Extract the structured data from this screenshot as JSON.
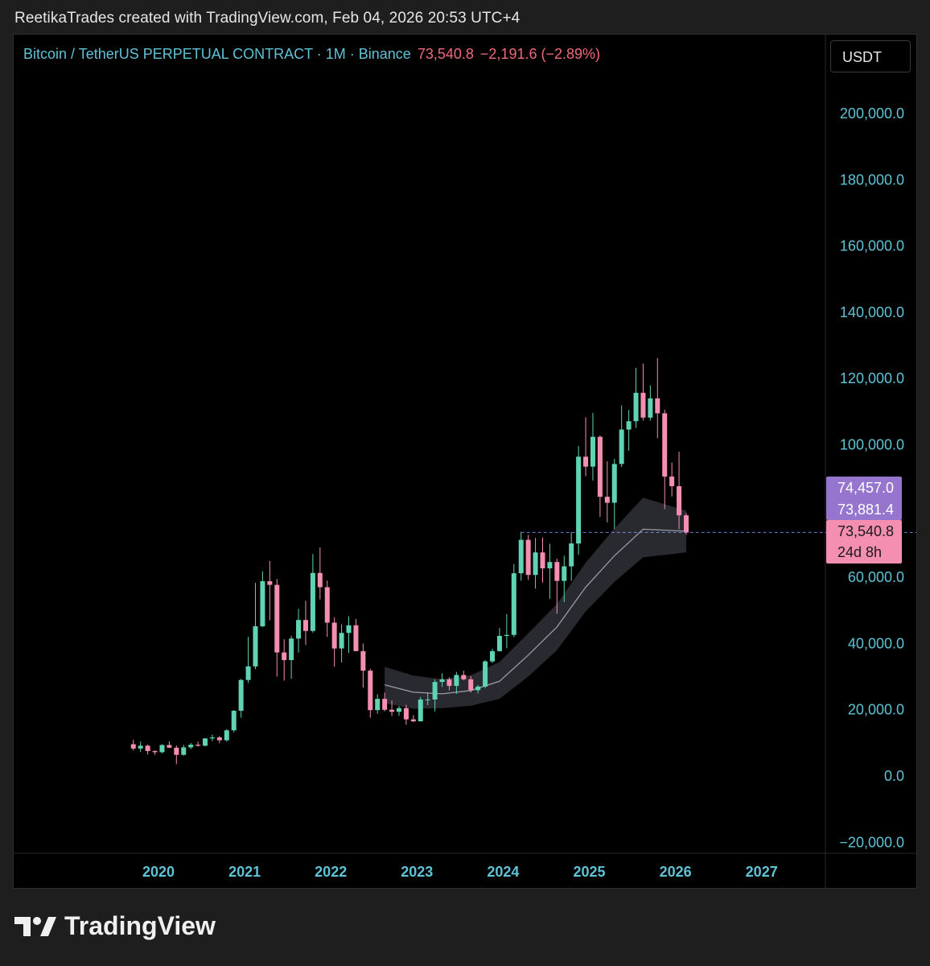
{
  "caption": "ReetikaTrades created with TradingView.com, Feb 04, 2026 20:53 UTC+4",
  "header": {
    "symbol": "Bitcoin / TetherUS PERPETUAL CONTRACT · 1M · Binance",
    "price": "73,540.8",
    "change": "−2,191.6 (−2.89%)"
  },
  "currency_button": "USDT",
  "logo_text": "TradingView",
  "colors": {
    "up": "#5fd3b3",
    "down": "#f48fb1",
    "axis_text": "#5fc3d6",
    "band": "#2a2c33",
    "ma_line": "#9a9ca3",
    "label_purple": "#9575cd",
    "label_pink": "#f48fb1"
  },
  "chart_data": {
    "type": "candlestick",
    "interval": "1M",
    "ylim": [
      -25000,
      225000
    ],
    "y_ticks": [
      {
        "value": 200000,
        "label": "200,000.0"
      },
      {
        "value": 180000,
        "label": "180,000.0"
      },
      {
        "value": 160000,
        "label": "160,000.0"
      },
      {
        "value": 140000,
        "label": "140,000.0"
      },
      {
        "value": 120000,
        "label": "120,000.0"
      },
      {
        "value": 100000,
        "label": "100,000.0"
      },
      {
        "value": 60000,
        "label": "60,000.0"
      },
      {
        "value": 40000,
        "label": "40,000.0"
      },
      {
        "value": 20000,
        "label": "20,000.0"
      },
      {
        "value": 0,
        "label": "0.0"
      },
      {
        "value": -20000,
        "label": "−20,000.0"
      }
    ],
    "x_ticks": [
      {
        "value": 2020,
        "label": "2020"
      },
      {
        "value": 2021,
        "label": "2021"
      },
      {
        "value": 2022,
        "label": "2022"
      },
      {
        "value": 2023,
        "label": "2023"
      },
      {
        "value": 2024,
        "label": "2024"
      },
      {
        "value": 2025,
        "label": "2025"
      },
      {
        "value": 2026,
        "label": "2026"
      },
      {
        "value": 2027,
        "label": "2027"
      }
    ],
    "price_labels": [
      {
        "value": 74457.0,
        "text": "74,457.0",
        "style": "purple"
      },
      {
        "value": 73881.4,
        "text": "73,881.4",
        "style": "purple"
      },
      {
        "value": 73540.8,
        "text": "73,540.8",
        "sub": "24d 8h",
        "style": "pink"
      }
    ],
    "last_price": 73540.8,
    "candles": [
      {
        "t": "2019-09",
        "o": 9600,
        "h": 10900,
        "l": 7700,
        "c": 8300
      },
      {
        "t": "2019-10",
        "o": 8300,
        "h": 10400,
        "l": 7300,
        "c": 9150
      },
      {
        "t": "2019-11",
        "o": 9150,
        "h": 9500,
        "l": 6500,
        "c": 7550
      },
      {
        "t": "2019-12",
        "o": 7550,
        "h": 7750,
        "l": 6400,
        "c": 7200
      },
      {
        "t": "2020-01",
        "o": 7200,
        "h": 9600,
        "l": 6850,
        "c": 9350
      },
      {
        "t": "2020-02",
        "o": 9350,
        "h": 10500,
        "l": 8450,
        "c": 8550
      },
      {
        "t": "2020-03",
        "o": 8550,
        "h": 9200,
        "l": 3600,
        "c": 6400
      },
      {
        "t": "2020-04",
        "o": 6400,
        "h": 9450,
        "l": 6150,
        "c": 8650
      },
      {
        "t": "2020-05",
        "o": 8650,
        "h": 10000,
        "l": 8100,
        "c": 9450
      },
      {
        "t": "2020-06",
        "o": 9450,
        "h": 10400,
        "l": 8850,
        "c": 9150
      },
      {
        "t": "2020-07",
        "o": 9150,
        "h": 11450,
        "l": 8950,
        "c": 11350
      },
      {
        "t": "2020-08",
        "o": 11350,
        "h": 12500,
        "l": 10550,
        "c": 11650
      },
      {
        "t": "2020-09",
        "o": 11650,
        "h": 12100,
        "l": 9900,
        "c": 10800
      },
      {
        "t": "2020-10",
        "o": 10800,
        "h": 14100,
        "l": 10400,
        "c": 13800
      },
      {
        "t": "2020-11",
        "o": 13800,
        "h": 19900,
        "l": 13200,
        "c": 19700
      },
      {
        "t": "2020-12",
        "o": 19700,
        "h": 29300,
        "l": 17600,
        "c": 29000
      },
      {
        "t": "2021-01",
        "o": 29000,
        "h": 42000,
        "l": 28100,
        "c": 33100
      },
      {
        "t": "2021-02",
        "o": 33100,
        "h": 58300,
        "l": 32300,
        "c": 45200
      },
      {
        "t": "2021-03",
        "o": 45200,
        "h": 61800,
        "l": 45000,
        "c": 58800
      },
      {
        "t": "2021-04",
        "o": 58800,
        "h": 64900,
        "l": 47000,
        "c": 57700
      },
      {
        "t": "2021-05",
        "o": 57700,
        "h": 59500,
        "l": 30000,
        "c": 37300
      },
      {
        "t": "2021-06",
        "o": 37300,
        "h": 41300,
        "l": 28800,
        "c": 35000
      },
      {
        "t": "2021-07",
        "o": 35000,
        "h": 42300,
        "l": 29300,
        "c": 41500
      },
      {
        "t": "2021-08",
        "o": 41500,
        "h": 50500,
        "l": 37300,
        "c": 47100
      },
      {
        "t": "2021-09",
        "o": 47100,
        "h": 52900,
        "l": 39600,
        "c": 43800
      },
      {
        "t": "2021-10",
        "o": 43800,
        "h": 67000,
        "l": 43300,
        "c": 61300
      },
      {
        "t": "2021-11",
        "o": 61300,
        "h": 69000,
        "l": 53300,
        "c": 57000
      },
      {
        "t": "2021-12",
        "o": 57000,
        "h": 59000,
        "l": 42000,
        "c": 46300
      },
      {
        "t": "2022-01",
        "o": 46300,
        "h": 47900,
        "l": 33000,
        "c": 38500
      },
      {
        "t": "2022-02",
        "o": 38500,
        "h": 45800,
        "l": 34300,
        "c": 43200
      },
      {
        "t": "2022-03",
        "o": 43200,
        "h": 48200,
        "l": 37200,
        "c": 45500
      },
      {
        "t": "2022-04",
        "o": 45500,
        "h": 47400,
        "l": 37700,
        "c": 37700
      },
      {
        "t": "2022-05",
        "o": 37700,
        "h": 40000,
        "l": 26700,
        "c": 31800
      },
      {
        "t": "2022-06",
        "o": 31800,
        "h": 32400,
        "l": 17600,
        "c": 19900
      },
      {
        "t": "2022-07",
        "o": 19900,
        "h": 24700,
        "l": 18800,
        "c": 23300
      },
      {
        "t": "2022-08",
        "o": 23300,
        "h": 25200,
        "l": 19500,
        "c": 20000
      },
      {
        "t": "2022-09",
        "o": 20000,
        "h": 22800,
        "l": 18100,
        "c": 19400
      },
      {
        "t": "2022-10",
        "o": 19400,
        "h": 21100,
        "l": 18200,
        "c": 20500
      },
      {
        "t": "2022-11",
        "o": 20500,
        "h": 21500,
        "l": 15500,
        "c": 17100
      },
      {
        "t": "2022-12",
        "o": 17100,
        "h": 18400,
        "l": 16300,
        "c": 16500
      },
      {
        "t": "2023-01",
        "o": 16500,
        "h": 23900,
        "l": 16500,
        "c": 23100
      },
      {
        "t": "2023-02",
        "o": 23100,
        "h": 25200,
        "l": 21400,
        "c": 23100
      },
      {
        "t": "2023-03",
        "o": 23100,
        "h": 29200,
        "l": 19500,
        "c": 28400
      },
      {
        "t": "2023-04",
        "o": 28400,
        "h": 31000,
        "l": 26900,
        "c": 29200
      },
      {
        "t": "2023-05",
        "o": 29200,
        "h": 29800,
        "l": 25800,
        "c": 27200
      },
      {
        "t": "2023-06",
        "o": 27200,
        "h": 31400,
        "l": 24800,
        "c": 30500
      },
      {
        "t": "2023-07",
        "o": 30500,
        "h": 31800,
        "l": 28900,
        "c": 29200
      },
      {
        "t": "2023-08",
        "o": 29200,
        "h": 30200,
        "l": 25200,
        "c": 25900
      },
      {
        "t": "2023-09",
        "o": 25900,
        "h": 27500,
        "l": 24900,
        "c": 27000
      },
      {
        "t": "2023-10",
        "o": 27000,
        "h": 35000,
        "l": 26500,
        "c": 34600
      },
      {
        "t": "2023-11",
        "o": 34600,
        "h": 38400,
        "l": 34100,
        "c": 37700
      },
      {
        "t": "2023-12",
        "o": 37700,
        "h": 44700,
        "l": 37600,
        "c": 42300
      },
      {
        "t": "2024-01",
        "o": 42300,
        "h": 48900,
        "l": 38600,
        "c": 42600
      },
      {
        "t": "2024-02",
        "o": 42600,
        "h": 64000,
        "l": 41900,
        "c": 61200
      },
      {
        "t": "2024-03",
        "o": 61200,
        "h": 73700,
        "l": 59000,
        "c": 71300
      },
      {
        "t": "2024-04",
        "o": 71300,
        "h": 72800,
        "l": 59200,
        "c": 60700
      },
      {
        "t": "2024-05",
        "o": 60700,
        "h": 71900,
        "l": 56600,
        "c": 67500
      },
      {
        "t": "2024-06",
        "o": 67500,
        "h": 72000,
        "l": 58400,
        "c": 62700
      },
      {
        "t": "2024-07",
        "o": 62700,
        "h": 70100,
        "l": 53500,
        "c": 64600
      },
      {
        "t": "2024-08",
        "o": 64600,
        "h": 65600,
        "l": 49000,
        "c": 58900
      },
      {
        "t": "2024-09",
        "o": 58900,
        "h": 66500,
        "l": 52500,
        "c": 63300
      },
      {
        "t": "2024-10",
        "o": 63300,
        "h": 73600,
        "l": 58900,
        "c": 70200
      },
      {
        "t": "2024-11",
        "o": 70200,
        "h": 99600,
        "l": 66800,
        "c": 96400
      },
      {
        "t": "2024-12",
        "o": 96400,
        "h": 108300,
        "l": 90500,
        "c": 93400
      },
      {
        "t": "2025-01",
        "o": 93400,
        "h": 109600,
        "l": 89200,
        "c": 102400
      },
      {
        "t": "2025-02",
        "o": 102400,
        "h": 102800,
        "l": 78200,
        "c": 84300
      },
      {
        "t": "2025-03",
        "o": 84300,
        "h": 95000,
        "l": 76600,
        "c": 82500
      },
      {
        "t": "2025-04",
        "o": 82500,
        "h": 95700,
        "l": 74600,
        "c": 94200
      },
      {
        "t": "2025-05",
        "o": 94200,
        "h": 111900,
        "l": 93300,
        "c": 104600
      },
      {
        "t": "2025-06",
        "o": 104600,
        "h": 110500,
        "l": 98200,
        "c": 107100
      },
      {
        "t": "2025-07",
        "o": 107100,
        "h": 123200,
        "l": 105100,
        "c": 115700
      },
      {
        "t": "2025-08",
        "o": 115700,
        "h": 124500,
        "l": 107300,
        "c": 108200
      },
      {
        "t": "2025-09",
        "o": 108200,
        "h": 117900,
        "l": 107300,
        "c": 114000
      },
      {
        "t": "2025-10",
        "o": 114000,
        "h": 126200,
        "l": 102000,
        "c": 109500
      },
      {
        "t": "2025-11",
        "o": 109500,
        "h": 110600,
        "l": 80600,
        "c": 90400
      },
      {
        "t": "2025-12",
        "o": 90400,
        "h": 94600,
        "l": 84400,
        "c": 87500
      },
      {
        "t": "2026-01",
        "o": 87500,
        "h": 97900,
        "l": 74500,
        "c": 78700
      },
      {
        "t": "2026-02",
        "o": 78700,
        "h": 79400,
        "l": 72900,
        "c": 73540.8
      }
    ],
    "ma_band": [
      {
        "t": "2022-08",
        "mid": 27500,
        "upper": 33000,
        "lower": 22000
      },
      {
        "t": "2022-12",
        "mid": 25300,
        "upper": 30300,
        "lower": 20300
      },
      {
        "t": "2023-04",
        "mid": 24800,
        "upper": 29200,
        "lower": 20500
      },
      {
        "t": "2023-08",
        "mid": 25800,
        "upper": 30400,
        "lower": 21200
      },
      {
        "t": "2023-12",
        "mid": 28600,
        "upper": 34400,
        "lower": 23300
      },
      {
        "t": "2024-04",
        "mid": 36500,
        "upper": 43100,
        "lower": 30000
      },
      {
        "t": "2024-08",
        "mid": 45000,
        "upper": 51900,
        "lower": 38000
      },
      {
        "t": "2024-12",
        "mid": 57000,
        "upper": 64400,
        "lower": 49700
      },
      {
        "t": "2025-04",
        "mid": 66500,
        "upper": 74700,
        "lower": 58600
      },
      {
        "t": "2025-08",
        "mid": 74500,
        "upper": 84000,
        "lower": 66000
      },
      {
        "t": "2026-02",
        "mid": 73900,
        "upper": 80100,
        "lower": 67500
      }
    ]
  }
}
